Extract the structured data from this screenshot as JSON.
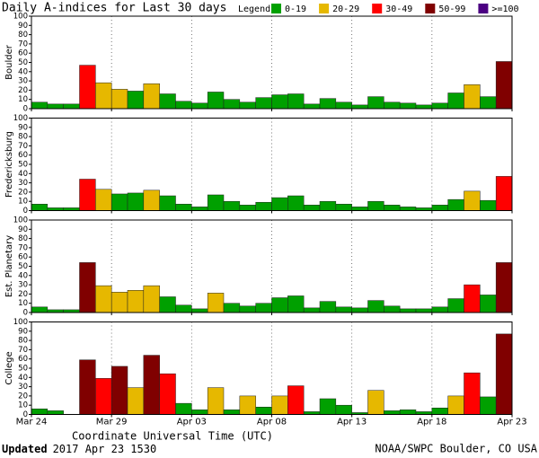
{
  "chart_data": {
    "type": "bar",
    "title": "Daily A-indices for Last 30 days",
    "legend_title": "Legend:",
    "legend": [
      {
        "label": "0-19",
        "color": "#00a000"
      },
      {
        "label": "20-29",
        "color": "#e6b800"
      },
      {
        "label": "30-49",
        "color": "#ff0000"
      },
      {
        "label": "50-99",
        "color": "#800000"
      },
      {
        "label": ">=100",
        "color": "#4b0082"
      }
    ],
    "xlabel": "Coordinate Universal Time (UTC)",
    "xlim": [
      0,
      30
    ],
    "xticks": [
      {
        "value": 0,
        "label": "Mar 24"
      },
      {
        "value": 5,
        "label": "Mar 29"
      },
      {
        "value": 10,
        "label": "Apr 03"
      },
      {
        "value": 15,
        "label": "Apr 08"
      },
      {
        "value": 20,
        "label": "Apr 13"
      },
      {
        "value": 25,
        "label": "Apr 18"
      },
      {
        "value": 30,
        "label": "Apr 23"
      }
    ],
    "ylim": [
      0,
      100
    ],
    "yticks": [
      0,
      10,
      20,
      30,
      40,
      50,
      60,
      70,
      80,
      90,
      100
    ],
    "grid": true,
    "panels": [
      {
        "ylabel": "Boulder",
        "values": [
          7,
          5,
          5,
          47,
          28,
          21,
          19,
          27,
          16,
          8,
          6,
          18,
          10,
          7,
          12,
          15,
          16,
          5,
          11,
          7,
          4,
          13,
          7,
          6,
          4,
          6,
          17,
          26,
          13,
          51
        ],
        "colors": [
          "#00a000",
          "#00a000",
          "#00a000",
          "#ff0000",
          "#e6b800",
          "#e6b800",
          "#00a000",
          "#e6b800",
          "#00a000",
          "#00a000",
          "#00a000",
          "#00a000",
          "#00a000",
          "#00a000",
          "#00a000",
          "#00a000",
          "#00a000",
          "#00a000",
          "#00a000",
          "#00a000",
          "#00a000",
          "#00a000",
          "#00a000",
          "#00a000",
          "#00a000",
          "#00a000",
          "#00a000",
          "#e6b800",
          "#00a000",
          "#800000"
        ]
      },
      {
        "ylabel": "Fredericksburg",
        "values": [
          7,
          3,
          3,
          34,
          23,
          18,
          19,
          22,
          16,
          7,
          4,
          17,
          10,
          6,
          9,
          14,
          16,
          6,
          10,
          7,
          4,
          10,
          6,
          4,
          3,
          6,
          12,
          21,
          11,
          37
        ],
        "colors": [
          "#00a000",
          "#00a000",
          "#00a000",
          "#ff0000",
          "#e6b800",
          "#00a000",
          "#00a000",
          "#e6b800",
          "#00a000",
          "#00a000",
          "#00a000",
          "#00a000",
          "#00a000",
          "#00a000",
          "#00a000",
          "#00a000",
          "#00a000",
          "#00a000",
          "#00a000",
          "#00a000",
          "#00a000",
          "#00a000",
          "#00a000",
          "#00a000",
          "#00a000",
          "#00a000",
          "#00a000",
          "#e6b800",
          "#00a000",
          "#ff0000"
        ]
      },
      {
        "ylabel": "Est. Planetary",
        "values": [
          6,
          3,
          3,
          54,
          29,
          22,
          24,
          29,
          17,
          8,
          4,
          21,
          10,
          7,
          10,
          16,
          18,
          5,
          12,
          6,
          5,
          13,
          7,
          4,
          4,
          6,
          15,
          30,
          19,
          54
        ],
        "colors": [
          "#00a000",
          "#00a000",
          "#00a000",
          "#800000",
          "#e6b800",
          "#e6b800",
          "#e6b800",
          "#e6b800",
          "#00a000",
          "#00a000",
          "#00a000",
          "#e6b800",
          "#00a000",
          "#00a000",
          "#00a000",
          "#00a000",
          "#00a000",
          "#00a000",
          "#00a000",
          "#00a000",
          "#00a000",
          "#00a000",
          "#00a000",
          "#00a000",
          "#00a000",
          "#00a000",
          "#00a000",
          "#ff0000",
          "#00a000",
          "#800000"
        ]
      },
      {
        "ylabel": "College",
        "values": [
          6,
          4,
          0,
          59,
          39,
          52,
          29,
          64,
          44,
          12,
          5,
          29,
          5,
          20,
          8,
          20,
          31,
          3,
          17,
          10,
          2,
          26,
          4,
          5,
          3,
          7,
          20,
          45,
          19,
          87
        ],
        "colors": [
          "#00a000",
          "#00a000",
          "#00a000",
          "#800000",
          "#ff0000",
          "#800000",
          "#e6b800",
          "#800000",
          "#ff0000",
          "#00a000",
          "#00a000",
          "#e6b800",
          "#00a000",
          "#e6b800",
          "#00a000",
          "#e6b800",
          "#ff0000",
          "#00a000",
          "#00a000",
          "#00a000",
          "#00a000",
          "#e6b800",
          "#00a000",
          "#00a000",
          "#00a000",
          "#00a000",
          "#e6b800",
          "#ff0000",
          "#00a000",
          "#800000"
        ]
      }
    ],
    "updated_label": "Updated",
    "updated": "2017 Apr 23 1530",
    "credit": "NOAA/SWPC Boulder, CO USA"
  }
}
